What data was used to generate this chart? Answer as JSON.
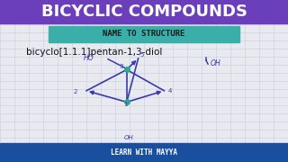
{
  "title": "BICYCLIC COMPOUNDS",
  "title_bg": "#6B3FBB",
  "title_color": "#FFFFFF",
  "subtitle": "NAME TO STRUCTURE",
  "subtitle_bg": "#3AAFA9",
  "subtitle_color": "#1a1a1a",
  "compound_name": "bicyclo[1.1.1]pentan-1,3-diol",
  "compound_name_color": "#111111",
  "footer": "LEARN WITH MAYYA",
  "footer_bg": "#1a4fa0",
  "footer_color": "#FFFFFF",
  "bg_color": "#e8eaf0",
  "draw_color": "#3a3aaa",
  "node_color": "#2aaa88",
  "grid_color": "#c8cce0"
}
